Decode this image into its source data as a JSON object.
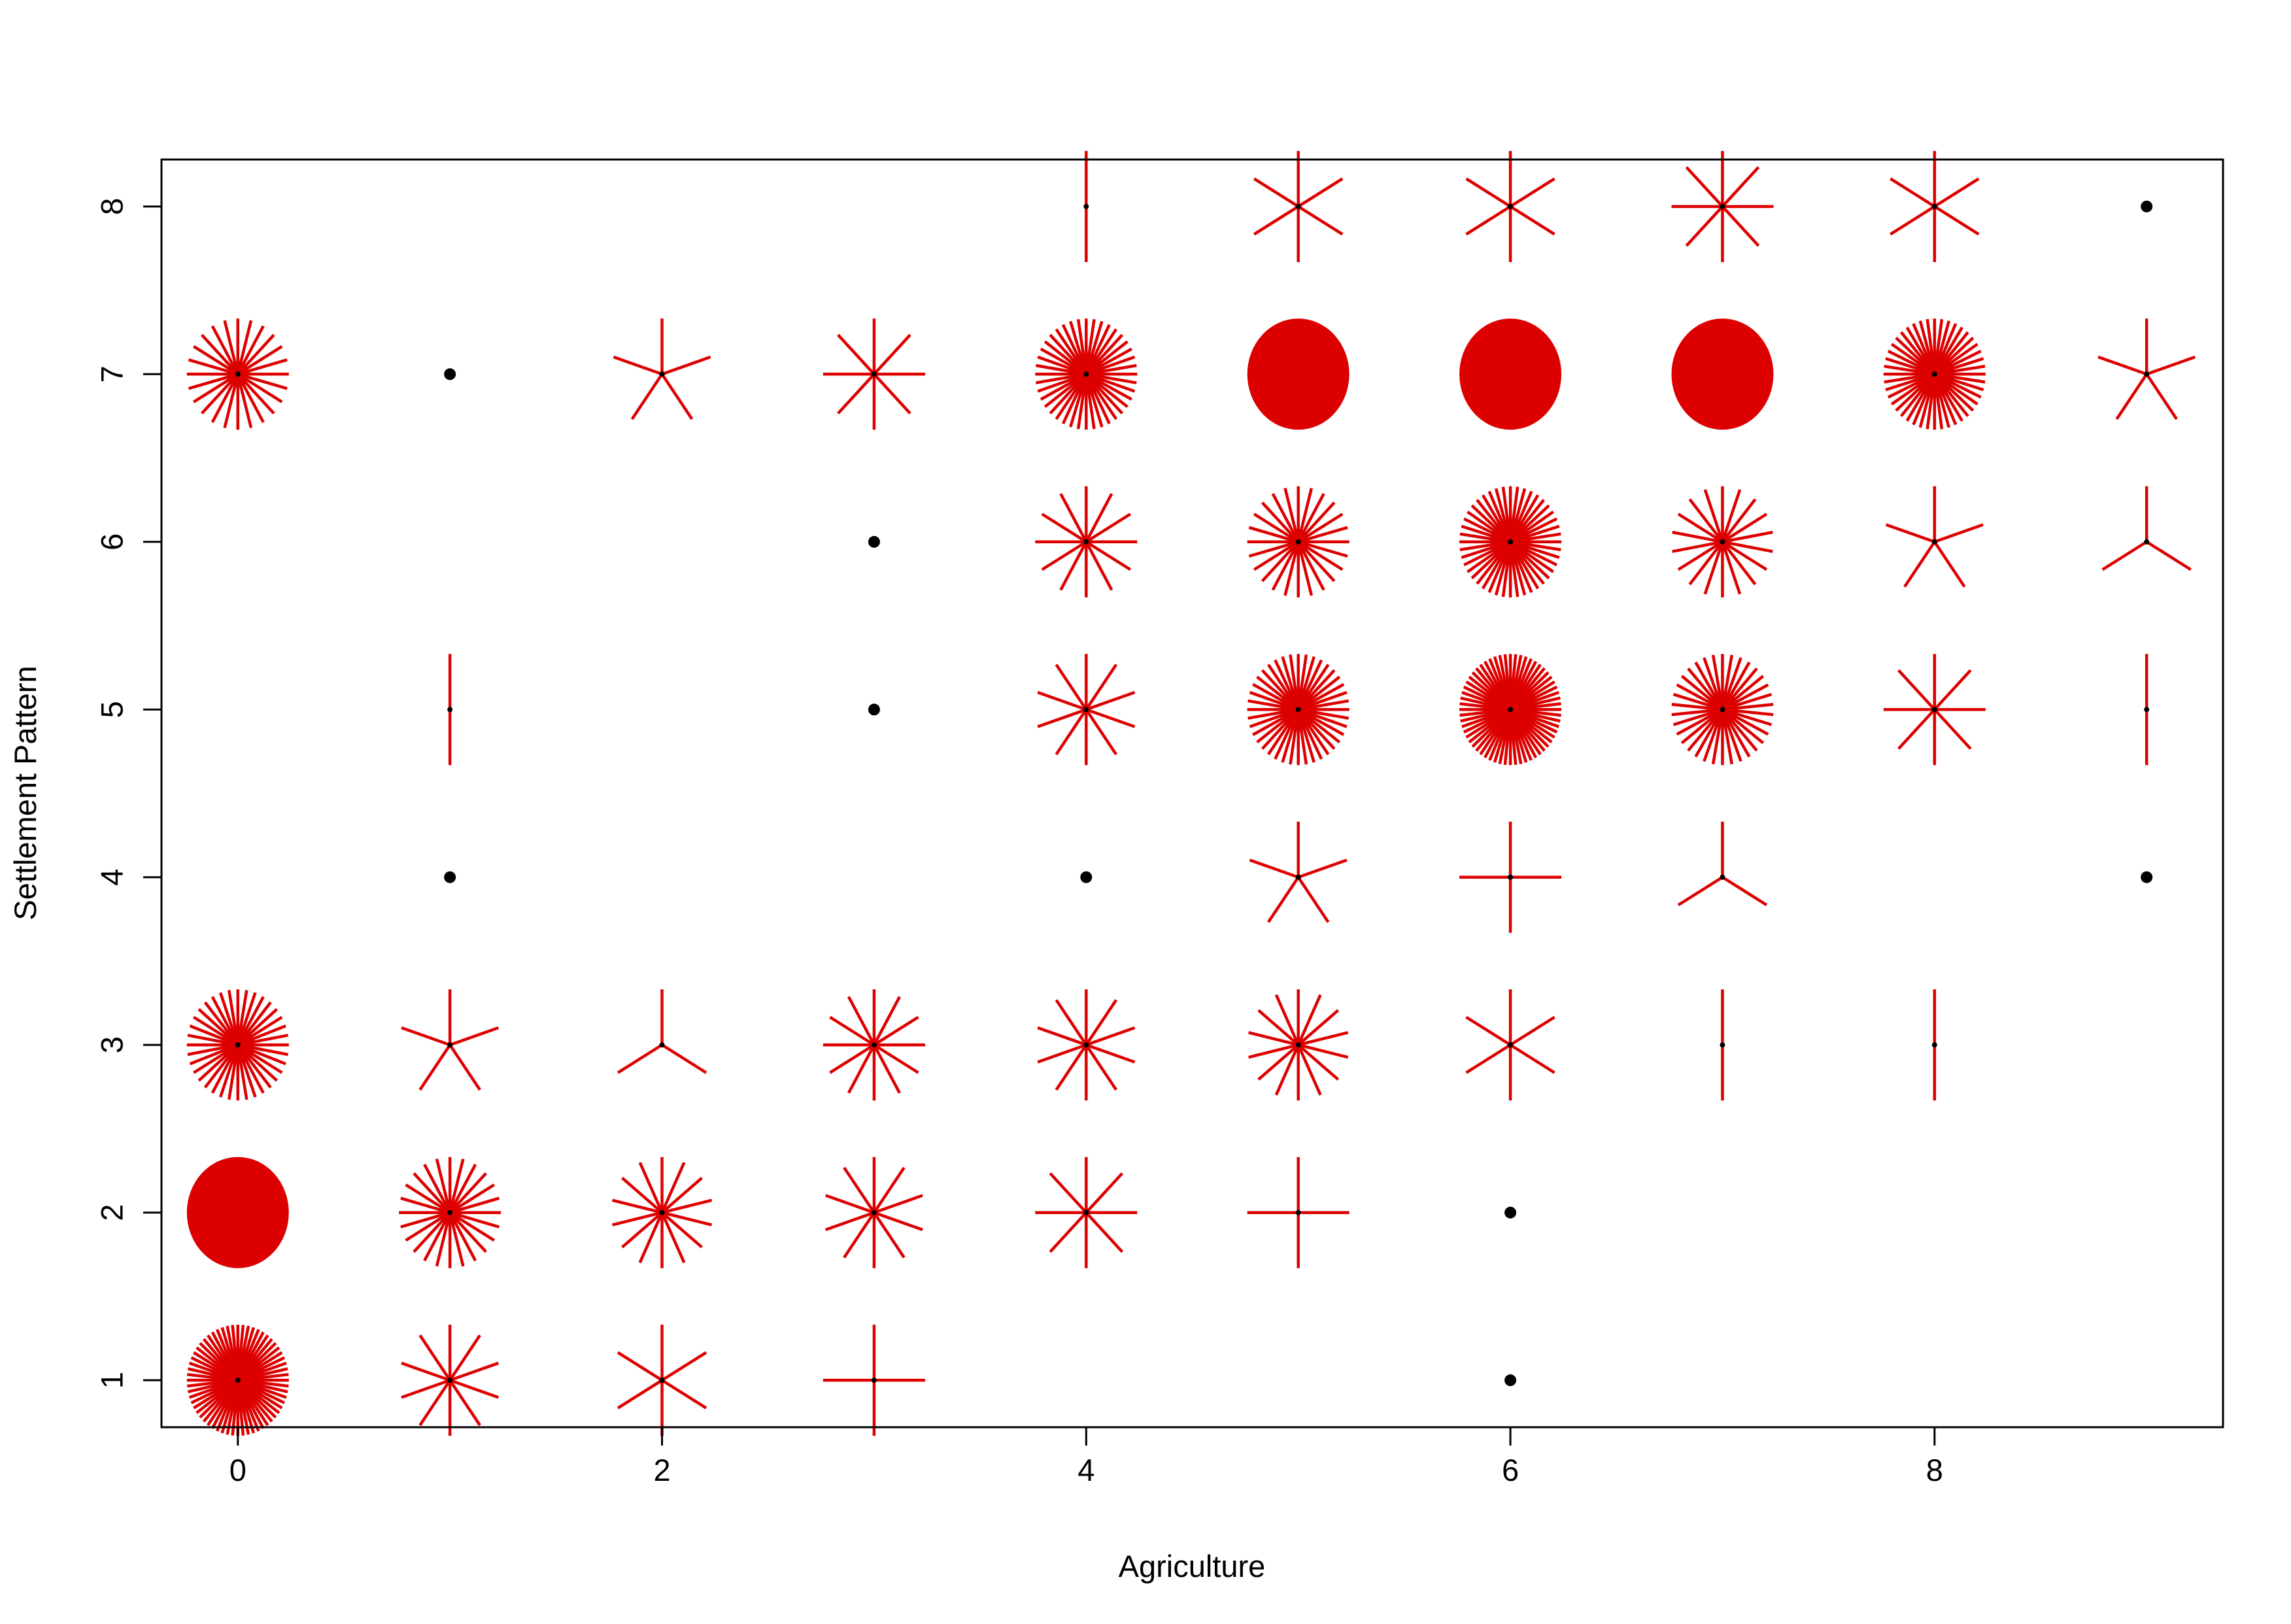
{
  "chart_data": {
    "type": "sunflowerplot",
    "title": "",
    "xlabel": "Agriculture",
    "ylabel": "Settlement Pattern",
    "xlim": [
      -0.36,
      9.36
    ],
    "ylim": [
      0.72,
      8.28
    ],
    "xticks": [
      0,
      2,
      4,
      6,
      8
    ],
    "yticks": [
      1,
      2,
      3,
      4,
      5,
      6,
      7,
      8
    ],
    "colors": {
      "petals": "#dd0000",
      "center": "#000000",
      "axes": "#000000"
    },
    "points": [
      {
        "x": 0,
        "y": 1,
        "count": 60
      },
      {
        "x": 1,
        "y": 1,
        "count": 10
      },
      {
        "x": 2,
        "y": 1,
        "count": 6
      },
      {
        "x": 3,
        "y": 1,
        "count": 4
      },
      {
        "x": 6,
        "y": 1,
        "count": 1
      },
      {
        "x": 0,
        "y": 2,
        "count": 120
      },
      {
        "x": 1,
        "y": 2,
        "count": 24
      },
      {
        "x": 2,
        "y": 2,
        "count": 14
      },
      {
        "x": 3,
        "y": 2,
        "count": 10
      },
      {
        "x": 4,
        "y": 2,
        "count": 8
      },
      {
        "x": 5,
        "y": 2,
        "count": 4
      },
      {
        "x": 6,
        "y": 2,
        "count": 1
      },
      {
        "x": 0,
        "y": 3,
        "count": 36
      },
      {
        "x": 1,
        "y": 3,
        "count": 5
      },
      {
        "x": 2,
        "y": 3,
        "count": 3
      },
      {
        "x": 3,
        "y": 3,
        "count": 12
      },
      {
        "x": 4,
        "y": 3,
        "count": 10
      },
      {
        "x": 5,
        "y": 3,
        "count": 14
      },
      {
        "x": 6,
        "y": 3,
        "count": 6
      },
      {
        "x": 7,
        "y": 3,
        "count": 2
      },
      {
        "x": 8,
        "y": 3,
        "count": 2
      },
      {
        "x": 1,
        "y": 4,
        "count": 1
      },
      {
        "x": 4,
        "y": 4,
        "count": 1
      },
      {
        "x": 5,
        "y": 4,
        "count": 5
      },
      {
        "x": 6,
        "y": 4,
        "count": 4
      },
      {
        "x": 7,
        "y": 4,
        "count": 3
      },
      {
        "x": 9,
        "y": 4,
        "count": 1
      },
      {
        "x": 1,
        "y": 5,
        "count": 2
      },
      {
        "x": 3,
        "y": 5,
        "count": 1
      },
      {
        "x": 4,
        "y": 5,
        "count": 10
      },
      {
        "x": 5,
        "y": 5,
        "count": 40
      },
      {
        "x": 6,
        "y": 5,
        "count": 60
      },
      {
        "x": 7,
        "y": 5,
        "count": 34
      },
      {
        "x": 8,
        "y": 5,
        "count": 8
      },
      {
        "x": 9,
        "y": 5,
        "count": 2
      },
      {
        "x": 3,
        "y": 6,
        "count": 1
      },
      {
        "x": 4,
        "y": 6,
        "count": 12
      },
      {
        "x": 5,
        "y": 6,
        "count": 24
      },
      {
        "x": 6,
        "y": 6,
        "count": 44
      },
      {
        "x": 7,
        "y": 6,
        "count": 18
      },
      {
        "x": 8,
        "y": 6,
        "count": 5
      },
      {
        "x": 9,
        "y": 6,
        "count": 3
      },
      {
        "x": 0,
        "y": 7,
        "count": 24
      },
      {
        "x": 1,
        "y": 7,
        "count": 1
      },
      {
        "x": 2,
        "y": 7,
        "count": 5
      },
      {
        "x": 3,
        "y": 7,
        "count": 8
      },
      {
        "x": 4,
        "y": 7,
        "count": 40
      },
      {
        "x": 5,
        "y": 7,
        "count": 180
      },
      {
        "x": 6,
        "y": 7,
        "count": 300
      },
      {
        "x": 7,
        "y": 7,
        "count": 240
      },
      {
        "x": 8,
        "y": 7,
        "count": 44
      },
      {
        "x": 9,
        "y": 7,
        "count": 5
      },
      {
        "x": 4,
        "y": 8,
        "count": 2
      },
      {
        "x": 5,
        "y": 8,
        "count": 6
      },
      {
        "x": 6,
        "y": 8,
        "count": 6
      },
      {
        "x": 7,
        "y": 8,
        "count": 8
      },
      {
        "x": 8,
        "y": 8,
        "count": 6
      },
      {
        "x": 9,
        "y": 8,
        "count": 1
      }
    ]
  }
}
